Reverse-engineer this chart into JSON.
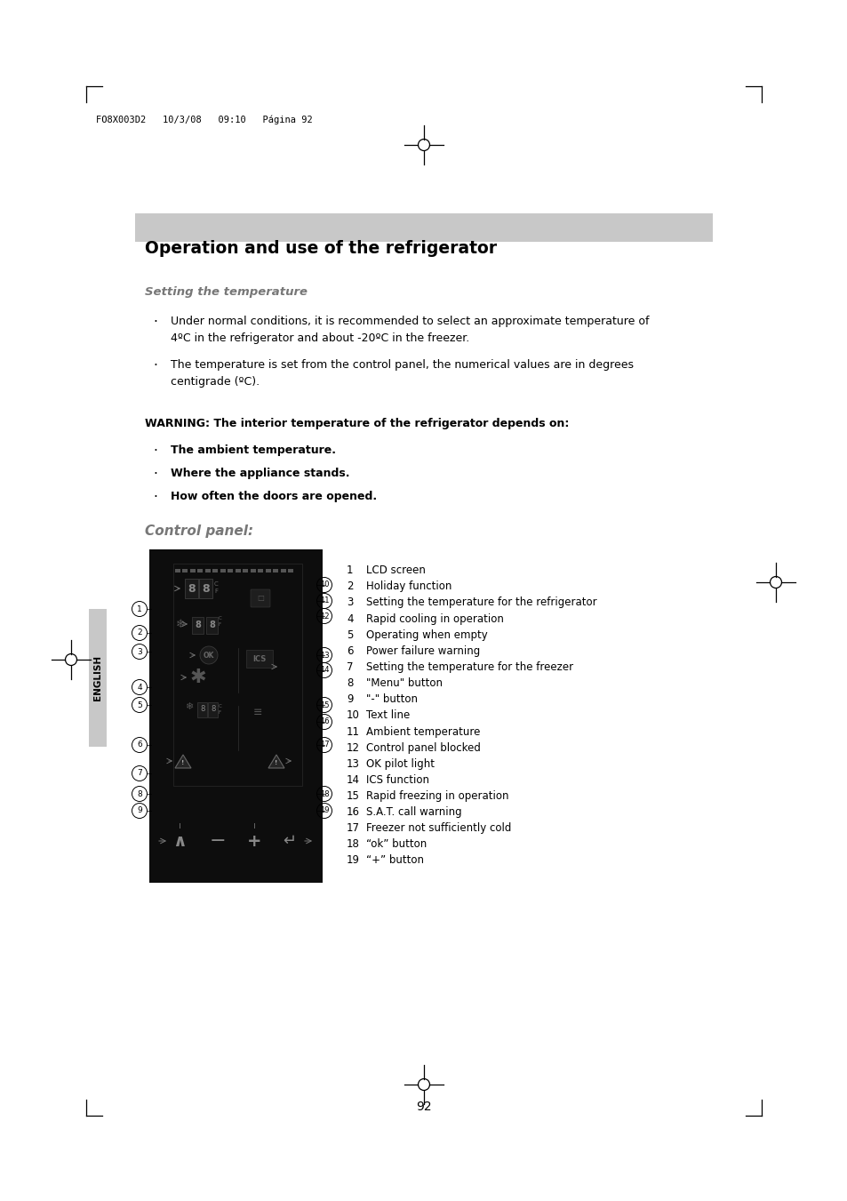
{
  "page_header": "FO8X003D2   10/3/08   09:10   Página 92",
  "main_title": "Operation and use of the refrigerator",
  "section1_title": "Setting the temperature",
  "bullet1_line1": "Under normal conditions, it is recommended to select an approximate temperature of",
  "bullet1_line2": "4ºC in the refrigerator and about -20ºC in the freezer.",
  "bullet2_line1": "The temperature is set from the control panel, the numerical values are in degrees",
  "bullet2_line2": "centigrade (ºC).",
  "warning_bold": "WARNING: The interior temperature of the refrigerator depends on:",
  "warning_bullets": [
    "The ambient temperature.",
    "Where the appliance stands.",
    "How often the doors are opened."
  ],
  "section2_title": "Control panel:",
  "numbered_items": [
    "LCD screen",
    "Holiday function",
    "Setting the temperature for the refrigerator",
    "Rapid cooling in operation",
    "Operating when empty",
    "Power failure warning",
    "Setting the temperature for the freezer",
    "\"Menu\" button",
    "\"-\" button",
    "Text line",
    "Ambient temperature",
    "Control panel blocked",
    "OK pilot light",
    "ICS function",
    "Rapid freezing in operation",
    "S.A.T. call warning",
    "Freezer not sufficiently cold",
    "“ok” button",
    "“+” button"
  ],
  "page_number": "92",
  "bg_color": "#ffffff",
  "title_bg_color": "#cccccc",
  "section_color": "#888888",
  "text_color": "#000000",
  "english_tab_color": "#cccccc",
  "panel_bg": "#111111"
}
